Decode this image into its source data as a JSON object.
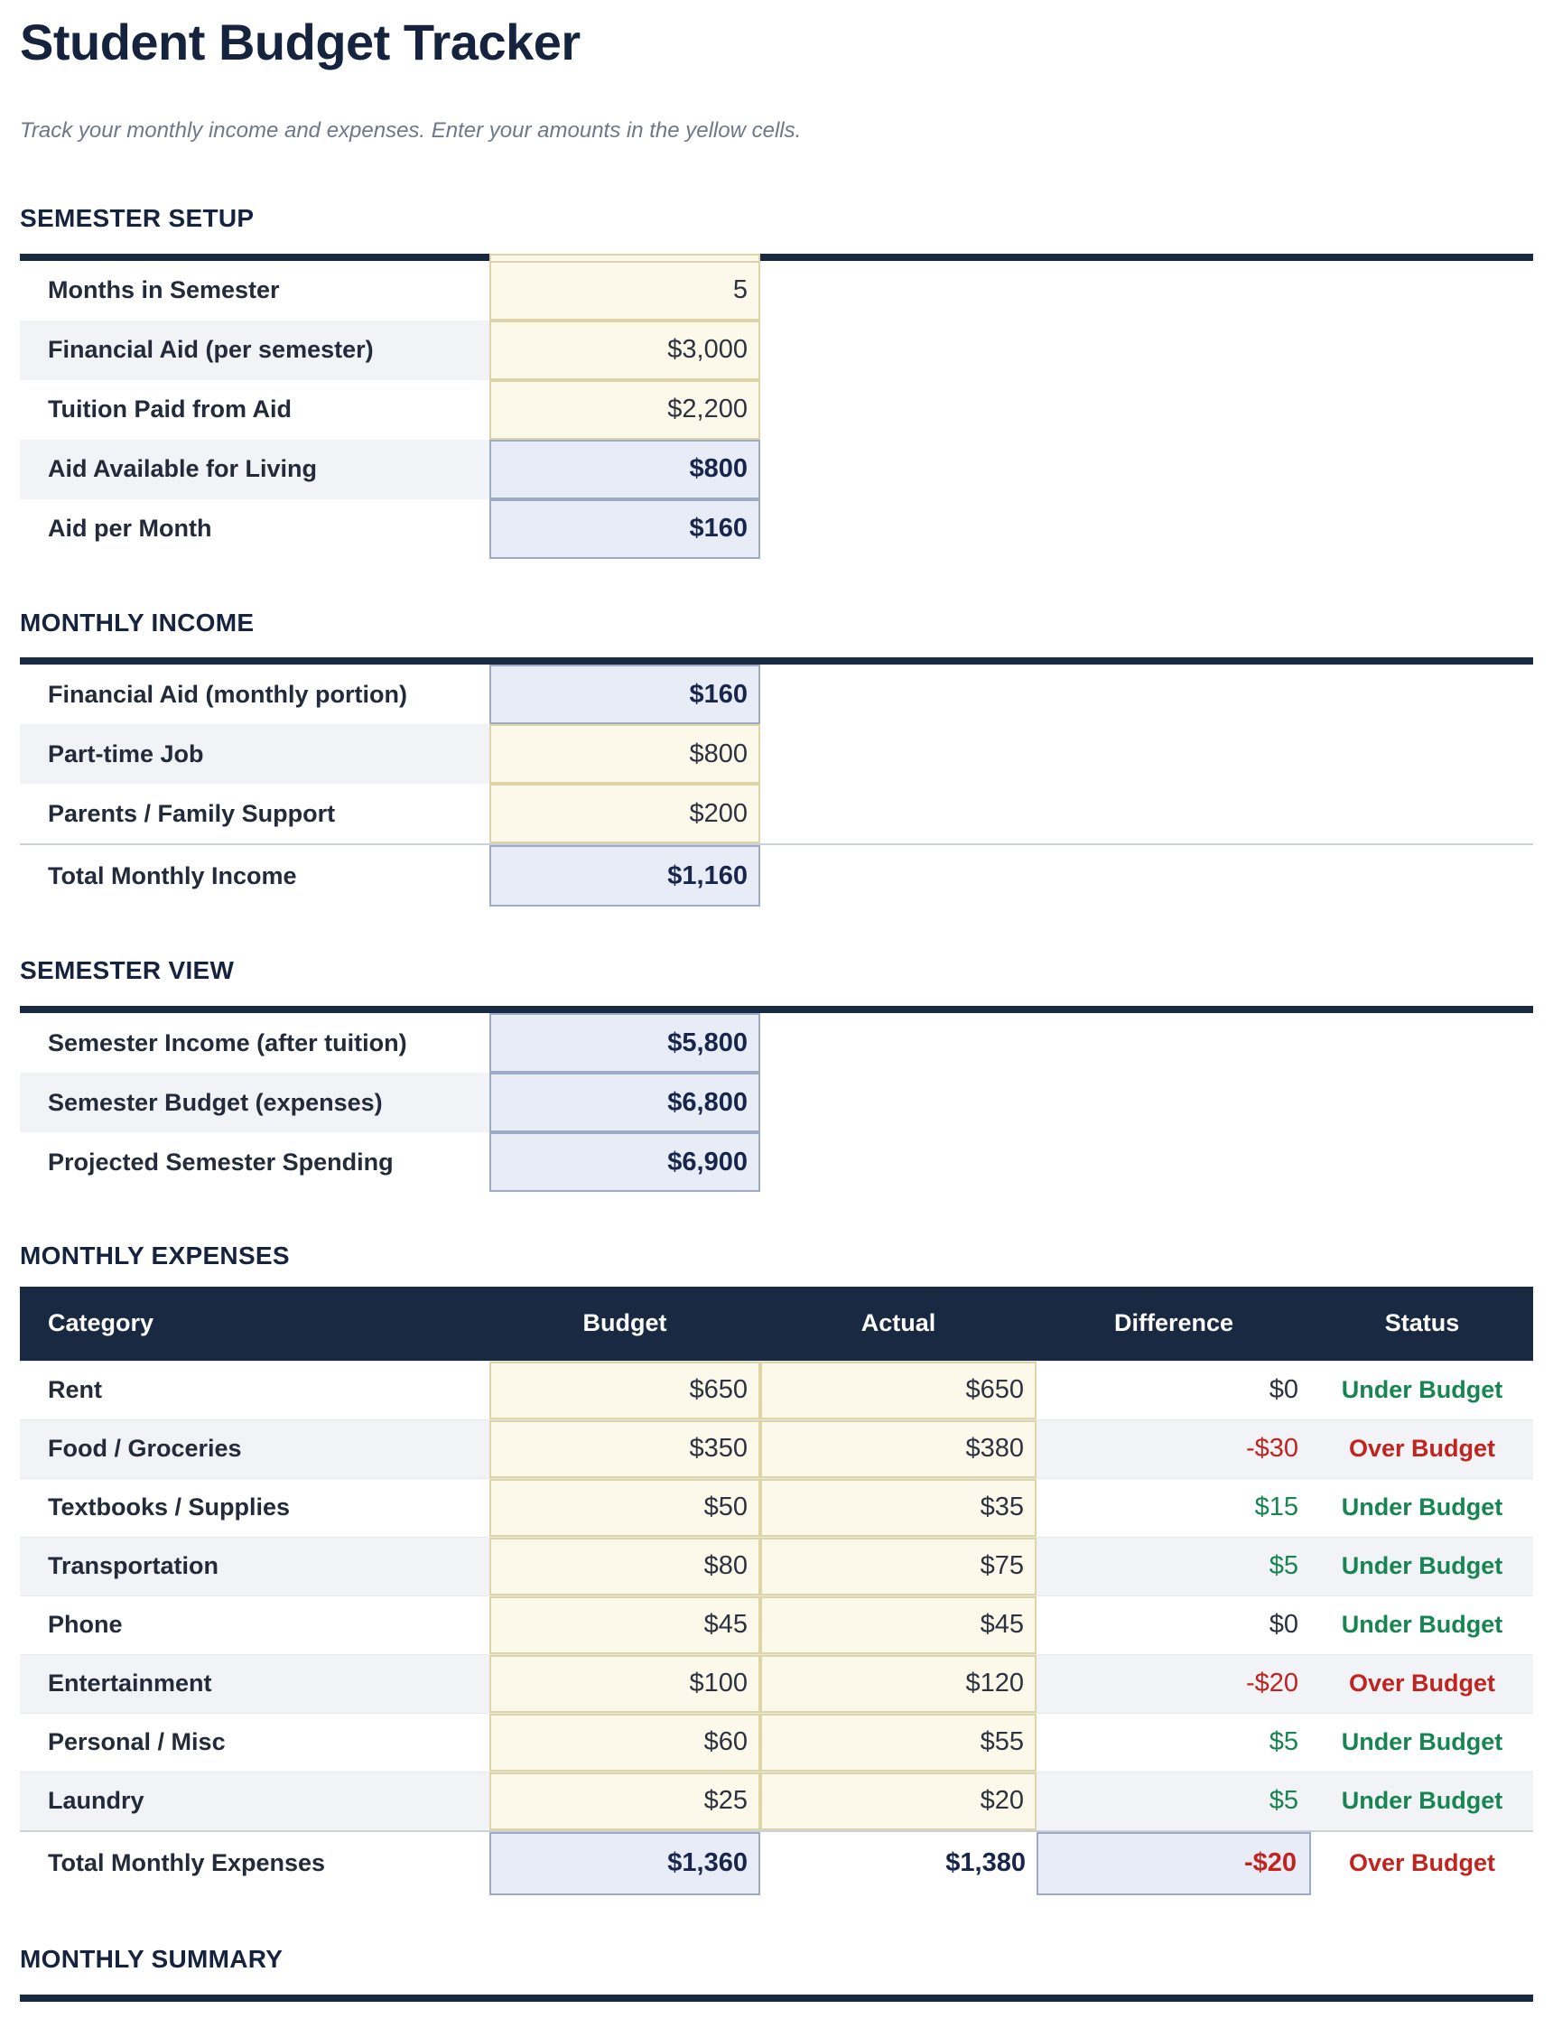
{
  "page": {
    "title": "Student Budget Tracker",
    "subtitle": "Track your monthly income and expenses. Enter your amounts in the yellow cells."
  },
  "colors": {
    "navy": "#1a2942",
    "input_cell_bg": "#fdf9ea",
    "input_cell_border": "#ddd4a8",
    "computed_cell_bg": "#e8ecf6",
    "computed_cell_border": "#9faac4",
    "stripe": "#f2f3f6",
    "under_budget_green": "#178552",
    "over_budget_red": "#c3231e"
  },
  "semester_setup": {
    "heading": "SEMESTER SETUP",
    "rows": [
      {
        "label": "Months in Semester",
        "value": "5",
        "type": "input"
      },
      {
        "label": "Financial Aid (per semester)",
        "value": "$3,000",
        "type": "input"
      },
      {
        "label": "Tuition Paid from Aid",
        "value": "$2,200",
        "type": "input"
      },
      {
        "label": "Aid Available for Living",
        "value": "$800",
        "type": "computed"
      },
      {
        "label": "Aid per Month",
        "value": "$160",
        "type": "computed"
      }
    ]
  },
  "monthly_income": {
    "heading": "MONTHLY INCOME",
    "rows": [
      {
        "label": "Financial Aid (monthly portion)",
        "value": "$160",
        "type": "computed"
      },
      {
        "label": "Part-time Job",
        "value": "$800",
        "type": "input"
      },
      {
        "label": "Parents / Family Support",
        "value": "$200",
        "type": "input"
      },
      {
        "label": "Total Monthly Income",
        "value": "$1,160",
        "type": "computed-total"
      }
    ]
  },
  "semester_view": {
    "heading": "SEMESTER VIEW",
    "rows": [
      {
        "label": "Semester Income (after tuition)",
        "value": "$5,800",
        "type": "computed"
      },
      {
        "label": "Semester Budget (expenses)",
        "value": "$6,800",
        "type": "computed"
      },
      {
        "label": "Projected Semester Spending",
        "value": "$6,900",
        "type": "computed"
      }
    ]
  },
  "monthly_expenses": {
    "heading": "MONTHLY EXPENSES",
    "columns": [
      "Category",
      "Budget",
      "Actual",
      "Difference",
      "Status"
    ],
    "rows": [
      {
        "category": "Rent",
        "budget": "$650",
        "actual": "$650",
        "difference": "$0",
        "diff_sign": "zero",
        "status": "Under Budget",
        "status_kind": "under"
      },
      {
        "category": "Food / Groceries",
        "budget": "$350",
        "actual": "$380",
        "difference": "-$30",
        "diff_sign": "negative",
        "status": "Over Budget",
        "status_kind": "over"
      },
      {
        "category": "Textbooks / Supplies",
        "budget": "$50",
        "actual": "$35",
        "difference": "$15",
        "diff_sign": "positive",
        "status": "Under Budget",
        "status_kind": "under"
      },
      {
        "category": "Transportation",
        "budget": "$80",
        "actual": "$75",
        "difference": "$5",
        "diff_sign": "positive",
        "status": "Under Budget",
        "status_kind": "under"
      },
      {
        "category": "Phone",
        "budget": "$45",
        "actual": "$45",
        "difference": "$0",
        "diff_sign": "zero",
        "status": "Under Budget",
        "status_kind": "under"
      },
      {
        "category": "Entertainment",
        "budget": "$100",
        "actual": "$120",
        "difference": "-$20",
        "diff_sign": "negative",
        "status": "Over Budget",
        "status_kind": "over"
      },
      {
        "category": "Personal / Misc",
        "budget": "$60",
        "actual": "$55",
        "difference": "$5",
        "diff_sign": "positive",
        "status": "Under Budget",
        "status_kind": "under"
      },
      {
        "category": "Laundry",
        "budget": "$25",
        "actual": "$20",
        "difference": "$5",
        "diff_sign": "positive",
        "status": "Under Budget",
        "status_kind": "under"
      }
    ],
    "total": {
      "category": "Total Monthly Expenses",
      "budget": "$1,360",
      "actual": "$1,380",
      "difference": "-$20",
      "status": "Over Budget"
    }
  },
  "monthly_summary": {
    "heading": "MONTHLY SUMMARY"
  }
}
